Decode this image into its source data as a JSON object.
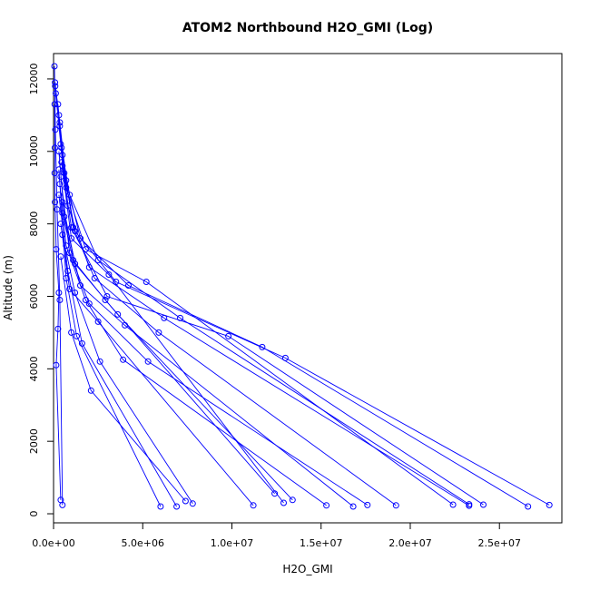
{
  "chart_data": {
    "type": "line",
    "title": "ATOM2 Northbound H2O_GMI (Log)",
    "xlabel": "H2O_GMI",
    "ylabel": "Altitude (m)",
    "xlim": [
      0,
      28500000
    ],
    "ylim": [
      -250,
      12700
    ],
    "x_ticks": [
      0,
      5000000,
      10000000,
      15000000,
      20000000,
      25000000
    ],
    "x_tick_labels": [
      "0.0e+00",
      "5.0e+06",
      "1.0e+07",
      "1.5e+07",
      "2.0e+07",
      "2.5e+07"
    ],
    "y_ticks": [
      0,
      2000,
      4000,
      6000,
      8000,
      10000,
      12000
    ],
    "y_tick_labels": [
      "0",
      "2000",
      "4000",
      "6000",
      "8000",
      "10000",
      "12000"
    ],
    "grid": false,
    "legend": "none",
    "series_color": "#0000ff",
    "marker": "open-circle",
    "profiles": [
      [
        [
          27800000,
          240
        ],
        [
          13000000,
          4300
        ],
        [
          3500000,
          6400
        ],
        [
          1200000,
          7800
        ],
        [
          600000,
          9400
        ],
        [
          300000,
          11000
        ],
        [
          80000,
          11900
        ]
      ],
      [
        [
          26600000,
          200
        ],
        [
          11700000,
          4600
        ],
        [
          4200000,
          6300
        ],
        [
          1500000,
          7600
        ],
        [
          700000,
          9200
        ],
        [
          350000,
          10800
        ],
        [
          90000,
          11800
        ]
      ],
      [
        [
          24100000,
          250
        ],
        [
          9800000,
          4900
        ],
        [
          3000000,
          6000
        ],
        [
          1000000,
          7900
        ],
        [
          500000,
          9600
        ],
        [
          250000,
          11300
        ]
      ],
      [
        [
          23300000,
          220
        ],
        [
          6200000,
          5400
        ],
        [
          2000000,
          6800
        ],
        [
          800000,
          8500
        ],
        [
          400000,
          10200
        ],
        [
          120000,
          11600
        ]
      ],
      [
        [
          23300000,
          260
        ],
        [
          7100000,
          5400
        ],
        [
          2500000,
          7000
        ],
        [
          900000,
          8800
        ],
        [
          450000,
          10100
        ]
      ],
      [
        [
          22400000,
          250
        ],
        [
          5200000,
          6400
        ],
        [
          1800000,
          7300
        ],
        [
          700000,
          9000
        ],
        [
          350000,
          10700
        ]
      ],
      [
        [
          19200000,
          230
        ],
        [
          5900000,
          5000
        ],
        [
          2300000,
          6500
        ],
        [
          1100000,
          7900
        ],
        [
          500000,
          9900
        ]
      ],
      [
        [
          17600000,
          240
        ],
        [
          5300000,
          4200
        ],
        [
          2000000,
          5800
        ],
        [
          900000,
          7200
        ],
        [
          400000,
          9300
        ]
      ],
      [
        [
          16800000,
          200
        ],
        [
          4000000,
          5200
        ],
        [
          1500000,
          6300
        ],
        [
          600000,
          8200
        ],
        [
          300000,
          10000
        ]
      ],
      [
        [
          15300000,
          230
        ],
        [
          3900000,
          4250
        ],
        [
          1800000,
          5900
        ],
        [
          700000,
          7400
        ],
        [
          350000,
          9100
        ]
      ],
      [
        [
          13400000,
          380
        ],
        [
          3600000,
          5500
        ],
        [
          1200000,
          6900
        ],
        [
          500000,
          8600
        ]
      ],
      [
        [
          12900000,
          300
        ],
        [
          3100000,
          6600
        ],
        [
          1000000,
          7600
        ],
        [
          450000,
          9700
        ]
      ],
      [
        [
          12400000,
          560
        ],
        [
          2900000,
          5900
        ],
        [
          1100000,
          7000
        ],
        [
          500000,
          8300
        ]
      ],
      [
        [
          11200000,
          230
        ],
        [
          2500000,
          5300
        ],
        [
          900000,
          6200
        ],
        [
          400000,
          8000
        ]
      ],
      [
        [
          7800000,
          280
        ],
        [
          2600000,
          4200
        ],
        [
          1200000,
          6100
        ],
        [
          500000,
          7700
        ]
      ],
      [
        [
          7400000,
          350
        ],
        [
          2100000,
          3400
        ],
        [
          1000000,
          5000
        ],
        [
          400000,
          7100
        ]
      ],
      [
        [
          6900000,
          200
        ],
        [
          1600000,
          4700
        ],
        [
          800000,
          6700
        ],
        [
          300000,
          8800
        ]
      ],
      [
        [
          6000000,
          200
        ],
        [
          1300000,
          4900
        ],
        [
          700000,
          6500
        ],
        [
          300000,
          9500
        ]
      ],
      [
        [
          500000,
          240
        ],
        [
          350000,
          5900
        ],
        [
          200000,
          8400
        ],
        [
          100000,
          10600
        ],
        [
          50000,
          12350
        ]
      ],
      [
        [
          400000,
          380
        ],
        [
          150000,
          4100
        ],
        [
          250000,
          5100
        ],
        [
          300000,
          6100
        ],
        [
          150000,
          7300
        ],
        [
          80000,
          8600
        ],
        [
          60000,
          9400
        ],
        [
          70000,
          10100
        ],
        [
          60000,
          11300
        ]
      ]
    ]
  }
}
